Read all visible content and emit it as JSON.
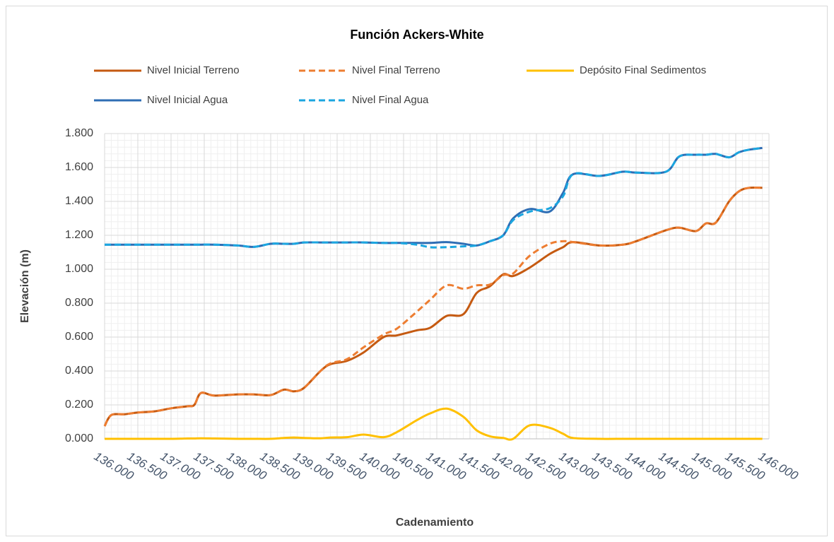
{
  "chart_data": {
    "type": "line",
    "title": "Función Ackers-White",
    "x_label": "Cadenamiento",
    "y_label": "Elevación (m)",
    "x": [
      136000,
      136100,
      136300,
      136500,
      136750,
      137000,
      137250,
      137350,
      137450,
      137650,
      138000,
      138250,
      138500,
      138700,
      138850,
      139000,
      139250,
      139400,
      139650,
      139900,
      140200,
      140400,
      140700,
      140900,
      141150,
      141400,
      141600,
      141800,
      142000,
      142150,
      142400,
      142700,
      142900,
      143050,
      143450,
      143800,
      144000,
      144450,
      144650,
      144900,
      145050,
      145200,
      145400,
      145550,
      145700,
      145900
    ],
    "series": [
      {
        "name": "Nivel Inicial Terreno",
        "color": "#c55a11",
        "dashed": false,
        "values": [
          75,
          140,
          145,
          155,
          162,
          180,
          192,
          200,
          270,
          255,
          262,
          262,
          258,
          290,
          280,
          300,
          400,
          440,
          460,
          510,
          600,
          610,
          640,
          655,
          725,
          735,
          860,
          900,
          970,
          960,
          1010,
          1090,
          1130,
          1160,
          1140,
          1145,
          1165,
          1230,
          1245,
          1225,
          1270,
          1275,
          1400,
          1460,
          1480,
          1480
        ]
      },
      {
        "name": "Nivel Final Terreno",
        "color": "#ed7d31",
        "dashed": true,
        "values": [
          75,
          140,
          145,
          155,
          162,
          180,
          192,
          200,
          270,
          255,
          262,
          262,
          258,
          290,
          280,
          300,
          400,
          445,
          470,
          540,
          615,
          650,
          750,
          820,
          905,
          885,
          905,
          910,
          965,
          975,
          1080,
          1150,
          1165,
          1160,
          1140,
          1145,
          1165,
          1230,
          1245,
          1225,
          1270,
          1275,
          1400,
          1460,
          1480,
          1480
        ]
      },
      {
        "name": "Depósito Final Sedimentos",
        "color": "#ffc000",
        "dashed": false,
        "values": [
          0,
          0,
          0,
          0,
          0,
          0,
          2,
          2,
          3,
          2,
          0,
          0,
          0,
          5,
          8,
          5,
          3,
          8,
          10,
          25,
          10,
          40,
          110,
          150,
          178,
          130,
          50,
          15,
          5,
          0,
          80,
          65,
          30,
          5,
          0,
          0,
          0,
          0,
          0,
          0,
          0,
          0,
          0,
          0,
          0,
          0
        ]
      },
      {
        "name": "Nivel Inicial Agua",
        "color": "#2e6db4",
        "dashed": false,
        "values": [
          1145,
          1145,
          1145,
          1145,
          1145,
          1145,
          1145,
          1145,
          1145,
          1145,
          1140,
          1132,
          1150,
          1150,
          1150,
          1158,
          1158,
          1158,
          1158,
          1158,
          1155,
          1155,
          1155,
          1155,
          1160,
          1150,
          1140,
          1165,
          1200,
          1300,
          1355,
          1340,
          1450,
          1560,
          1550,
          1575,
          1570,
          1575,
          1665,
          1675,
          1675,
          1680,
          1660,
          1690,
          1705,
          1715
        ]
      },
      {
        "name": "Nivel Final Agua",
        "color": "#1ba6e0",
        "dashed": true,
        "values": [
          1145,
          1145,
          1145,
          1145,
          1145,
          1145,
          1145,
          1145,
          1145,
          1145,
          1140,
          1132,
          1150,
          1150,
          1150,
          1158,
          1158,
          1158,
          1158,
          1158,
          1155,
          1155,
          1145,
          1130,
          1130,
          1135,
          1140,
          1165,
          1200,
          1290,
          1340,
          1360,
          1430,
          1560,
          1550,
          1575,
          1570,
          1575,
          1665,
          1675,
          1675,
          1680,
          1660,
          1690,
          1705,
          1715
        ]
      }
    ],
    "xlim": [
      136000,
      146000
    ],
    "xticks": [
      {
        "value": 136000,
        "label": "136.000"
      },
      {
        "value": 136500,
        "label": "136.500"
      },
      {
        "value": 137000,
        "label": "137.000"
      },
      {
        "value": 137500,
        "label": "137.500"
      },
      {
        "value": 138000,
        "label": "138.000"
      },
      {
        "value": 138500,
        "label": "138.500"
      },
      {
        "value": 139000,
        "label": "139.000"
      },
      {
        "value": 139500,
        "label": "139.500"
      },
      {
        "value": 140000,
        "label": "140.000"
      },
      {
        "value": 140500,
        "label": "140.500"
      },
      {
        "value": 141000,
        "label": "141.000"
      },
      {
        "value": 141500,
        "label": "141.500"
      },
      {
        "value": 142000,
        "label": "142.000"
      },
      {
        "value": 142500,
        "label": "142.500"
      },
      {
        "value": 143000,
        "label": "143.000"
      },
      {
        "value": 143500,
        "label": "143.500"
      },
      {
        "value": 144000,
        "label": "144.000"
      },
      {
        "value": 144500,
        "label": "144.500"
      },
      {
        "value": 145000,
        "label": "145.000"
      },
      {
        "value": 145500,
        "label": "145.500"
      },
      {
        "value": 146000,
        "label": "146.000"
      }
    ],
    "ylim": [
      0,
      1800
    ],
    "yticks": [
      {
        "value": 0,
        "label": "0.000"
      },
      {
        "value": 200,
        "label": "0.200"
      },
      {
        "value": 400,
        "label": "0.400"
      },
      {
        "value": 600,
        "label": "0.600"
      },
      {
        "value": 800,
        "label": "0.800"
      },
      {
        "value": 1000,
        "label": "1.000"
      },
      {
        "value": 1200,
        "label": "1.200"
      },
      {
        "value": 1400,
        "label": "1.400"
      },
      {
        "value": 1600,
        "label": "1.600"
      },
      {
        "value": 1800,
        "label": "1.800"
      }
    ],
    "grid": true,
    "minor_grid": true,
    "legend": "top"
  }
}
